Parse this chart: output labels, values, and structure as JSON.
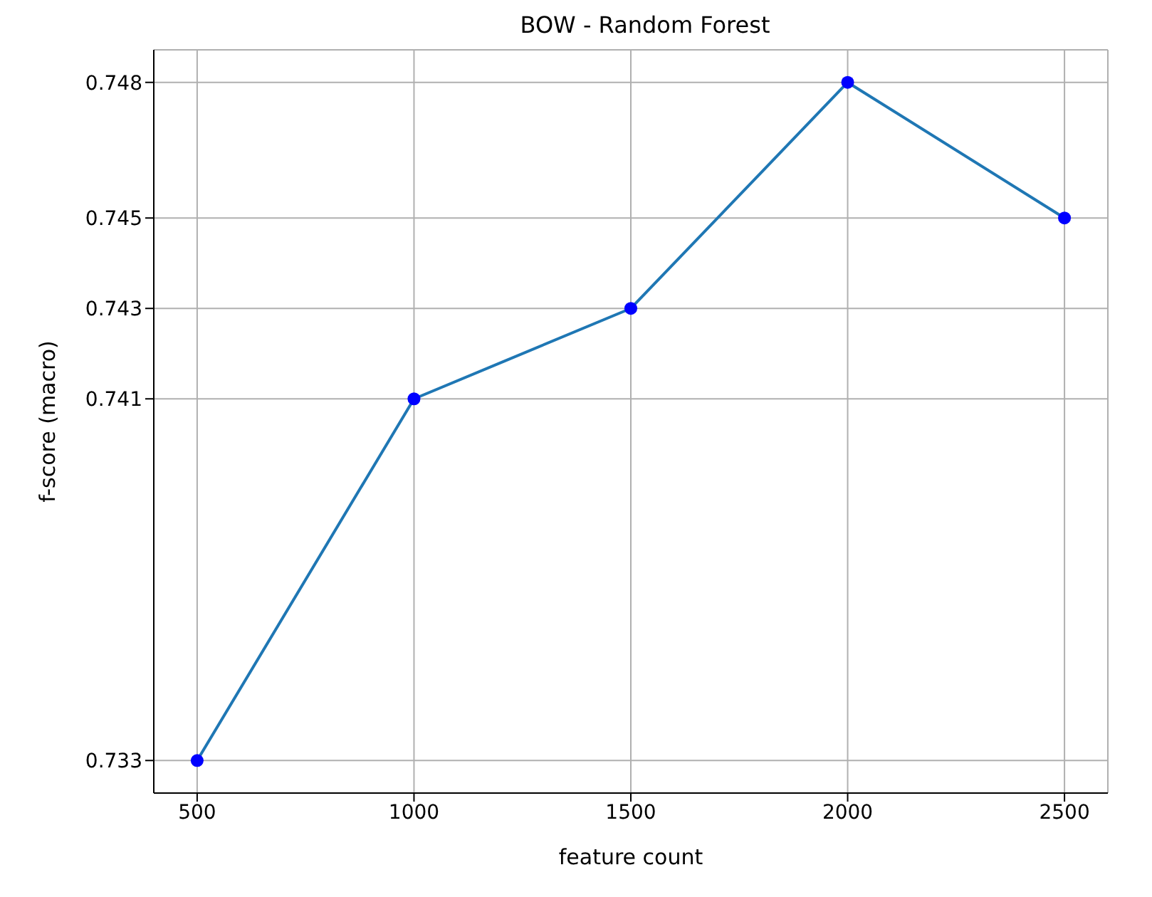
{
  "chart_data": {
    "type": "line",
    "title": "BOW - Random Forest",
    "xlabel": "feature count",
    "ylabel": "f-score (macro)",
    "x": [
      500,
      1000,
      1500,
      2000,
      2500
    ],
    "series": [
      {
        "color": "#1f77b4",
        "values": [
          0.733,
          0.741,
          0.743,
          0.748,
          0.745
        ],
        "marker": "none"
      },
      {
        "type": "scatter",
        "color": "#0000ff",
        "values": [
          0.733,
          0.741,
          0.743,
          0.748,
          0.745
        ],
        "marker": "circle"
      }
    ],
    "xlim": [
      400,
      2600
    ],
    "xticks": [
      500,
      1000,
      1500,
      2000,
      2500
    ],
    "ylim": [
      0.73228,
      0.74872
    ],
    "yticks": [
      0.733,
      0.741,
      0.743,
      0.745,
      0.748
    ],
    "grid": true,
    "legend": false
  }
}
